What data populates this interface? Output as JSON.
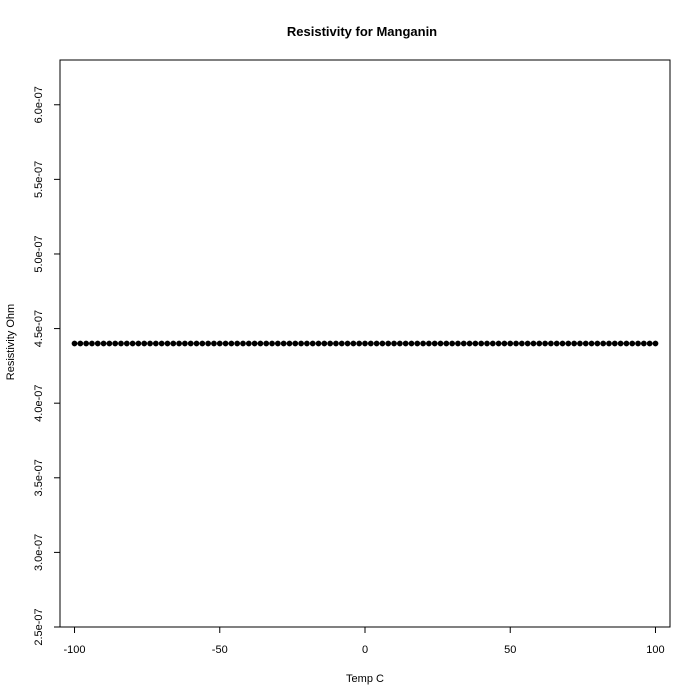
{
  "chart_data": {
    "type": "scatter",
    "title": "Resistivity for  Manganin",
    "xlabel": "Temp C",
    "ylabel": "Resistivity Ohm",
    "xlim": [
      -105,
      105
    ],
    "ylim": [
      2.5e-07,
      6.3e-07
    ],
    "x_ticks": [
      -100,
      -50,
      0,
      50,
      100
    ],
    "x_tick_labels": [
      "-100",
      "-50",
      "0",
      "50",
      "100"
    ],
    "y_ticks": [
      2.5e-07,
      3e-07,
      3.5e-07,
      4e-07,
      4.5e-07,
      5e-07,
      5.5e-07,
      6e-07
    ],
    "y_tick_labels": [
      "2.5e-07",
      "3.0e-07",
      "3.5e-07",
      "4.0e-07",
      "4.5e-07",
      "5.0e-07",
      "5.5e-07",
      "6.0e-07"
    ],
    "grid": false,
    "legend": "none",
    "point_color": "#000000",
    "series": [
      {
        "x": [
          -100,
          -98,
          -96,
          -94,
          -92,
          -90,
          -88,
          -86,
          -84,
          -82,
          -80,
          -78,
          -76,
          -74,
          -72,
          -70,
          -68,
          -66,
          -64,
          -62,
          -60,
          -58,
          -56,
          -54,
          -52,
          -50,
          -48,
          -46,
          -44,
          -42,
          -40,
          -38,
          -36,
          -34,
          -32,
          -30,
          -28,
          -26,
          -24,
          -22,
          -20,
          -18,
          -16,
          -14,
          -12,
          -10,
          -8,
          -6,
          -4,
          -2,
          0,
          2,
          4,
          6,
          8,
          10,
          12,
          14,
          16,
          18,
          20,
          22,
          24,
          26,
          28,
          30,
          32,
          34,
          36,
          38,
          40,
          42,
          44,
          46,
          48,
          50,
          52,
          54,
          56,
          58,
          60,
          62,
          64,
          66,
          68,
          70,
          72,
          74,
          76,
          78,
          80,
          82,
          84,
          86,
          88,
          90,
          92,
          94,
          96,
          98,
          100
        ],
        "y": [
          4.4e-07,
          4.4e-07,
          4.4e-07,
          4.4e-07,
          4.4e-07,
          4.4e-07,
          4.4e-07,
          4.4e-07,
          4.4e-07,
          4.4e-07,
          4.4e-07,
          4.4e-07,
          4.4e-07,
          4.4e-07,
          4.4e-07,
          4.4e-07,
          4.4e-07,
          4.4e-07,
          4.4e-07,
          4.4e-07,
          4.4e-07,
          4.4e-07,
          4.4e-07,
          4.4e-07,
          4.4e-07,
          4.4e-07,
          4.4e-07,
          4.4e-07,
          4.4e-07,
          4.4e-07,
          4.4e-07,
          4.4e-07,
          4.4e-07,
          4.4e-07,
          4.4e-07,
          4.4e-07,
          4.4e-07,
          4.4e-07,
          4.4e-07,
          4.4e-07,
          4.4e-07,
          4.4e-07,
          4.4e-07,
          4.4e-07,
          4.4e-07,
          4.4e-07,
          4.4e-07,
          4.4e-07,
          4.4e-07,
          4.4e-07,
          4.4e-07,
          4.4e-07,
          4.4e-07,
          4.4e-07,
          4.4e-07,
          4.4e-07,
          4.4e-07,
          4.4e-07,
          4.4e-07,
          4.4e-07,
          4.4e-07,
          4.4e-07,
          4.4e-07,
          4.4e-07,
          4.4e-07,
          4.4e-07,
          4.4e-07,
          4.4e-07,
          4.4e-07,
          4.4e-07,
          4.4e-07,
          4.4e-07,
          4.4e-07,
          4.4e-07,
          4.4e-07,
          4.4e-07,
          4.4e-07,
          4.4e-07,
          4.4e-07,
          4.4e-07,
          4.4e-07,
          4.4e-07,
          4.4e-07,
          4.4e-07,
          4.4e-07,
          4.4e-07,
          4.4e-07,
          4.4e-07,
          4.4e-07,
          4.4e-07,
          4.4e-07,
          4.4e-07,
          4.4e-07,
          4.4e-07,
          4.4e-07,
          4.4e-07,
          4.4e-07,
          4.4e-07,
          4.4e-07,
          4.4e-07,
          4.4e-07
        ]
      }
    ]
  }
}
